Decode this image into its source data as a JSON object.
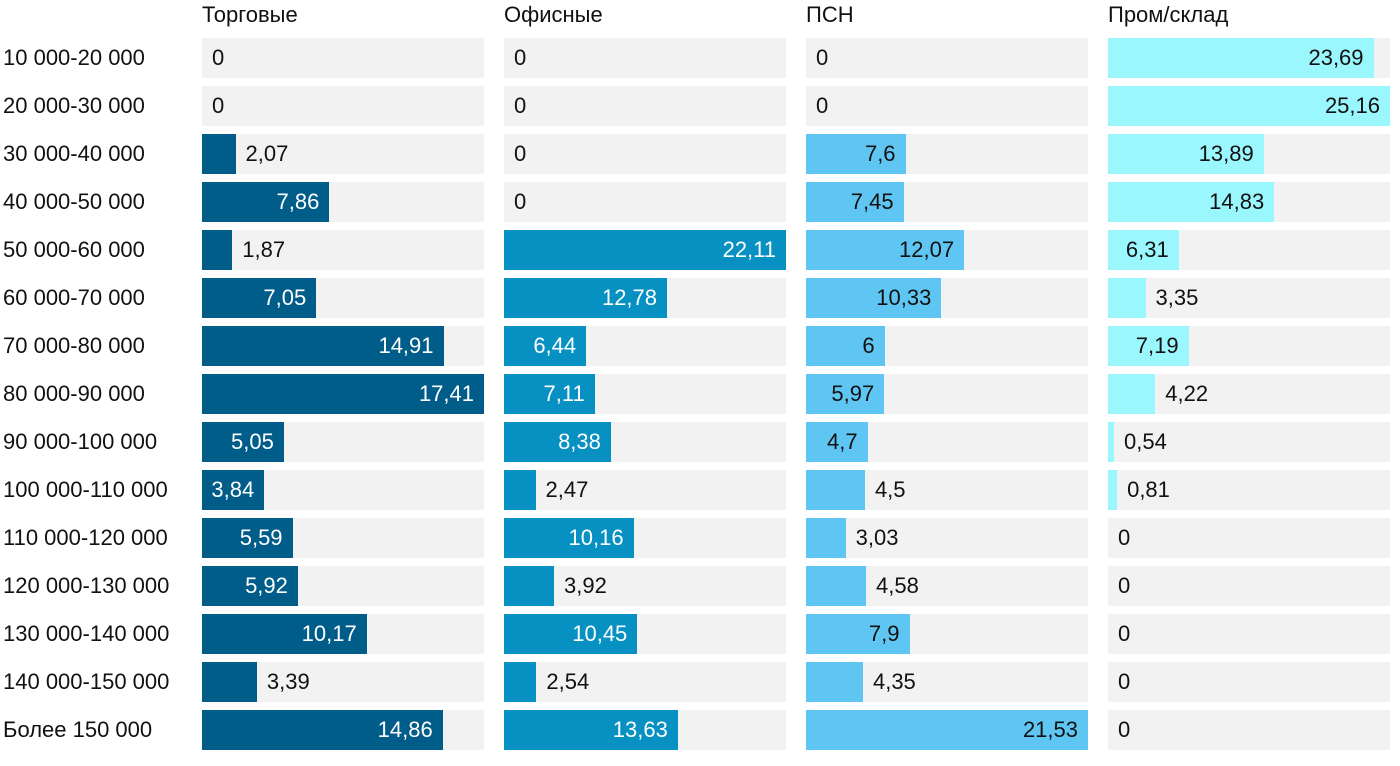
{
  "chart_data": {
    "type": "bar",
    "orientation": "horizontal",
    "layout": "small-multiples",
    "categories": [
      "10 000-20 000",
      "20 000-30 000",
      "30 000-40 000",
      "40 000-50 000",
      "50 000-60 000",
      "60 000-70 000",
      "70 000-80 000",
      "80 000-90 000",
      "90 000-100 000",
      "100 000-110 000",
      "110 000-120 000",
      "120 000-130 000",
      "130 000-140 000",
      "140 000-150 000",
      "Более 150 000"
    ],
    "series": [
      {
        "name": "Торговые",
        "color": "#005d8a",
        "max": 17.41,
        "values": [
          0,
          0,
          2.07,
          7.86,
          1.87,
          7.05,
          14.91,
          17.41,
          5.05,
          3.84,
          5.59,
          5.92,
          10.17,
          3.39,
          14.86
        ],
        "labels": [
          "0",
          "0",
          "2,07",
          "7,86",
          "1,87",
          "7,05",
          "14,91",
          "17,41",
          "5,05",
          "3,84",
          "5,59",
          "5,92",
          "10,17",
          "3,39",
          "14,86"
        ]
      },
      {
        "name": "Офисные",
        "color": "#0791c3",
        "max": 22.11,
        "values": [
          0,
          0,
          0,
          0,
          22.11,
          12.78,
          6.44,
          7.11,
          8.38,
          2.47,
          10.16,
          3.92,
          10.45,
          2.54,
          13.63
        ],
        "labels": [
          "0",
          "0",
          "0",
          "0",
          "22,11",
          "12,78",
          "6,44",
          "7,11",
          "8,38",
          "2,47",
          "10,16",
          "3,92",
          "10,45",
          "2,54",
          "13,63"
        ]
      },
      {
        "name": "ПСН",
        "color": "#5fc6f4",
        "max": 21.53,
        "values": [
          0,
          0,
          7.6,
          7.45,
          12.07,
          10.33,
          6,
          5.97,
          4.7,
          4.5,
          3.03,
          4.58,
          7.9,
          4.35,
          21.53
        ],
        "labels": [
          "0",
          "0",
          "7,6",
          "7,45",
          "12,07",
          "10,33",
          "6",
          "5,97",
          "4,7",
          "4,5",
          "3,03",
          "4,58",
          "7,9",
          "4,35",
          "21,53"
        ]
      },
      {
        "name": "Пром/склад",
        "color": "#9af7fd",
        "max": 25.16,
        "values": [
          23.69,
          25.16,
          13.89,
          14.83,
          6.31,
          3.35,
          7.19,
          4.22,
          0.54,
          0.81,
          0,
          0,
          0,
          0,
          0
        ],
        "labels": [
          "23,69",
          "25,16",
          "13,89",
          "14,83",
          "6,31",
          "3,35",
          "7,19",
          "4,22",
          "0,54",
          "0,81",
          "0",
          "0",
          "0",
          "0",
          "0"
        ]
      }
    ]
  }
}
